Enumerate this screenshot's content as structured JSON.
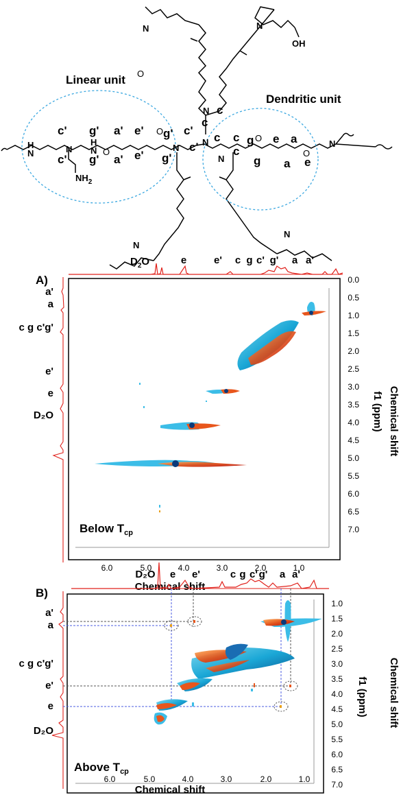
{
  "structure": {
    "linear_unit_label": "Linear unit",
    "dendritic_unit_label": "Dendritic unit",
    "nh2_label": "NH",
    "nh2_sub": "2",
    "oh_label": "OH",
    "letters": {
      "c": "c",
      "g": "g",
      "e": "e",
      "a": "a",
      "c_prime": "c'",
      "g_prime": "g'",
      "e_prime": "e'",
      "a_prime": "a'"
    }
  },
  "panel_a": {
    "label": "A)",
    "condition_main": "Below T",
    "condition_sub": "cp",
    "top_peaks": [
      {
        "text": "D",
        "sub": "2",
        "tail": "O",
        "ppm": 4.72
      },
      {
        "text": "e",
        "ppm": 4.05
      },
      {
        "text": "e'",
        "ppm": 3.52
      },
      {
        "text": "c",
        "ppm": 2.95
      },
      {
        "text": "g",
        "ppm": 2.72
      },
      {
        "text": "c'",
        "ppm": 2.55
      },
      {
        "text": "g'",
        "ppm": 2.22
      },
      {
        "text": "a",
        "ppm": 1.72
      },
      {
        "text": "a'",
        "ppm": 1.52
      }
    ],
    "side_peaks": [
      {
        "text": "a'",
        "ppm": 1.25
      },
      {
        "text": "a",
        "ppm": 1.62
      },
      {
        "text": "c g c'g'",
        "ppm": 2.45
      },
      {
        "text": "e'",
        "ppm": 3.42
      },
      {
        "text": "e",
        "ppm": 4.05
      },
      {
        "text": "D₂O",
        "ppm": 4.62
      }
    ],
    "x_label": "Chemical shift",
    "y_label": "f1 (ppm)",
    "y_side_label": "Chemical shift"
  },
  "panel_b": {
    "label": "B)",
    "condition_main": "Above T",
    "condition_sub": "cp",
    "top_peaks": [
      {
        "text": "D₂O",
        "ppm": 4.72
      },
      {
        "text": "e",
        "ppm": 4.45
      },
      {
        "text": "e'",
        "ppm": 3.85
      },
      {
        "text": "c",
        "ppm": 3.25
      },
      {
        "text": "g",
        "ppm": 3.05
      },
      {
        "text": "c'",
        "ppm": 2.85
      },
      {
        "text": "g'",
        "ppm": 2.65
      },
      {
        "text": "a",
        "ppm": 1.98
      },
      {
        "text": "a'",
        "ppm": 1.82
      }
    ],
    "side_peaks": [
      {
        "text": "a'",
        "ppm": 1.72
      },
      {
        "text": "a",
        "ppm": 1.9
      },
      {
        "text": "c g c'g'",
        "ppm": 2.95
      },
      {
        "text": "e'",
        "ppm": 3.85
      },
      {
        "text": "e",
        "ppm": 4.35
      },
      {
        "text": "D₂O",
        "ppm": 4.75
      }
    ],
    "x_label": "Chemical shift",
    "y_label": "f1 (ppm)",
    "y_side_label": "Chemical shift"
  },
  "chart_data": [
    {
      "type": "heatmap",
      "title": "",
      "xlabel": "Chemical shift",
      "ylabel": "f1 (ppm)",
      "x_ticks": [
        "6.0",
        "5.0",
        "4.0",
        "3.0",
        "2.0",
        "1.0"
      ],
      "y_ticks": [
        "0.0",
        "0.5",
        "1.0",
        "1.5",
        "2.0",
        "2.5",
        "3.0",
        "3.5",
        "4.0",
        "4.5",
        "5.0",
        "5.5",
        "6.0",
        "6.5",
        "7.0"
      ],
      "xlim": [
        7.0,
        0.0
      ],
      "ylim": [
        0.0,
        7.0
      ],
      "annotation": "Below Tcp",
      "diagonal_peaks_ppm": [
        4.62,
        4.05,
        3.42,
        2.45,
        1.45
      ]
    },
    {
      "type": "heatmap",
      "title": "",
      "xlabel": "Chemical shift",
      "ylabel": "f1 (ppm)",
      "x_ticks": [
        "6.0",
        "5.0",
        "4.0",
        "3.0",
        "2.0",
        "1.0"
      ],
      "y_ticks": [
        "1.0",
        "1.5",
        "2.0",
        "2.5",
        "3.0",
        "3.5",
        "4.0",
        "4.5",
        "5.0",
        "5.5",
        "6.0",
        "6.5",
        "7.0"
      ],
      "xlim": [
        7.0,
        0.5
      ],
      "ylim": [
        0.5,
        7.0
      ],
      "annotation": "Above Tcp",
      "diagonal_peaks_ppm": [
        4.75,
        4.35,
        3.85,
        2.95,
        1.85
      ],
      "cross_peaks_ppm": [
        [
          4.45,
          1.85
        ],
        [
          3.85,
          1.82
        ],
        [
          1.85,
          3.85
        ],
        [
          1.98,
          4.35
        ]
      ]
    }
  ]
}
